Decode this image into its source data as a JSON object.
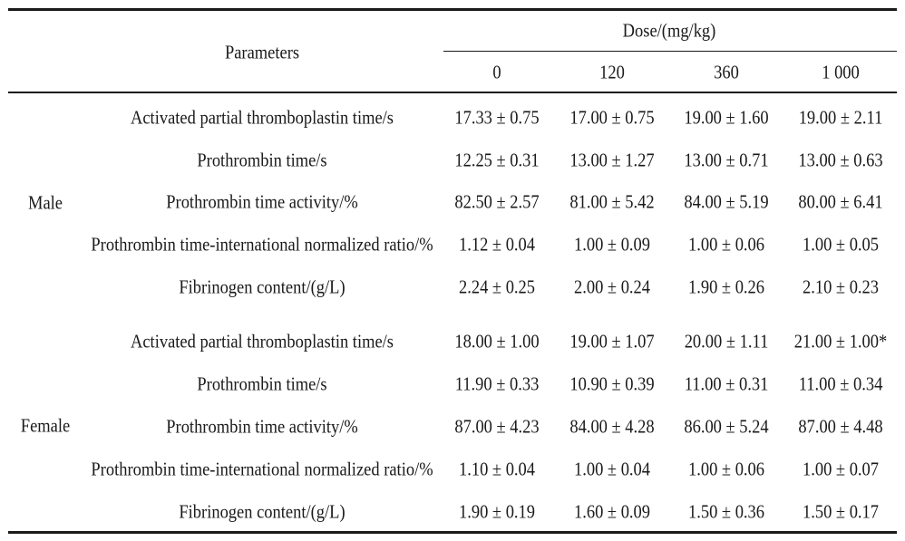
{
  "header": {
    "parameters_label": "Parameters",
    "dose_label": "Dose/(mg/kg)",
    "dose_levels": [
      "0",
      "120",
      "360",
      "1 000"
    ]
  },
  "groups": [
    {
      "sex": "Male",
      "rows": [
        {
          "parameter": "Activated partial thromboplastin time/s",
          "values": [
            "17.33 ± 0.75",
            "17.00 ± 0.75",
            "19.00 ± 1.60",
            "19.00 ± 2.11"
          ]
        },
        {
          "parameter": "Prothrombin time/s",
          "values": [
            "12.25 ± 0.31",
            "13.00 ± 1.27",
            "13.00 ± 0.71",
            "13.00 ± 0.63"
          ]
        },
        {
          "parameter": "Prothrombin time activity/%",
          "values": [
            "82.50 ± 2.57",
            "81.00 ± 5.42",
            "84.00 ± 5.19",
            "80.00 ± 6.41"
          ]
        },
        {
          "parameter": "Prothrombin time-international normalized ratio/%",
          "values": [
            "1.12 ± 0.04",
            "1.00 ± 0.09",
            "1.00 ± 0.06",
            "1.00 ± 0.05"
          ]
        },
        {
          "parameter": "Fibrinogen content/(g/L)",
          "values": [
            "2.24 ± 0.25",
            "2.00 ± 0.24",
            "1.90 ± 0.26",
            "2.10 ± 0.23"
          ]
        }
      ]
    },
    {
      "sex": "Female",
      "rows": [
        {
          "parameter": "Activated partial thromboplastin time/s",
          "values": [
            "18.00 ± 1.00",
            "19.00 ± 1.07",
            "20.00 ± 1.11",
            "21.00 ± 1.00*"
          ]
        },
        {
          "parameter": "Prothrombin time/s",
          "values": [
            "11.90 ± 0.33",
            "10.90 ± 0.39",
            "11.00 ± 0.31",
            "11.00 ± 0.34"
          ]
        },
        {
          "parameter": "Prothrombin time activity/%",
          "values": [
            "87.00 ± 4.23",
            "84.00 ± 4.28",
            "86.00 ± 5.24",
            "87.00 ± 4.48"
          ]
        },
        {
          "parameter": "Prothrombin time-international normalized ratio/%",
          "values": [
            "1.10 ± 0.04",
            "1.00 ± 0.04",
            "1.00 ± 0.06",
            "1.00 ± 0.07"
          ]
        },
        {
          "parameter": "Fibrinogen content/(g/L)",
          "values": [
            "1.90 ± 0.19",
            "1.60 ± 0.09",
            "1.50 ± 0.36",
            "1.50 ± 0.17"
          ]
        }
      ]
    }
  ]
}
